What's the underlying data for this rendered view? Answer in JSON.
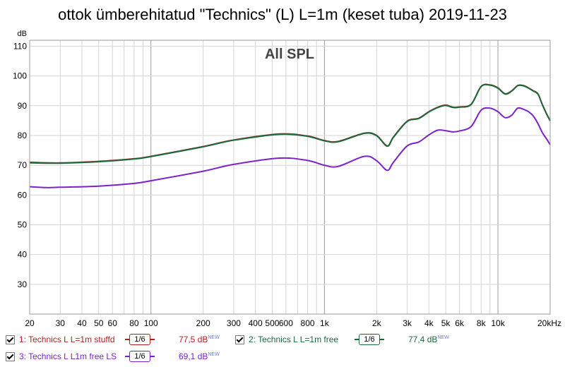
{
  "window": {
    "title": "ottok ümberehitatud \"Technics\" (L) L=1m (keset tuba) 2019-11-23"
  },
  "chart_data": {
    "type": "line",
    "title": "ottok ümberehitatud \"Technics\" (L) L=1m (keset tuba) 2019-11-23",
    "subtitle": "All SPL",
    "ylabel": "dB",
    "xunit": "Hz",
    "x_scale": "log",
    "xlim": [
      20,
      20000
    ],
    "ylim": [
      20,
      112
    ],
    "grid": true,
    "x_ticks": [
      20,
      30,
      40,
      50,
      60,
      80,
      100,
      200,
      300,
      400,
      500,
      600,
      800,
      1000,
      2000,
      3000,
      4000,
      5000,
      6000,
      8000,
      10000,
      20000
    ],
    "x_tick_labels": [
      "20",
      "30",
      "40",
      "50",
      "60",
      "80",
      "100",
      "200",
      "300",
      "400",
      "500",
      "600",
      "800",
      "1k",
      "2k",
      "3k",
      "4k",
      "5k",
      "6k",
      "8k",
      "10k",
      "20kHz"
    ],
    "y_ticks": [
      30,
      40,
      50,
      60,
      70,
      80,
      90,
      100,
      110
    ],
    "y_tick_labels": [
      "30",
      "40",
      "50",
      "60",
      "70",
      "80",
      "90",
      "100",
      "110"
    ],
    "series": [
      {
        "name": "1: Technics L L=1m stuffd",
        "color": "#b02020",
        "level": "77,5 dB",
        "smoothing": "1/6",
        "x": [
          20,
          30,
          50,
          80,
          100,
          200,
          300,
          550,
          800,
          1000,
          1200,
          1700,
          2000,
          2300,
          2500,
          3000,
          3500,
          4000,
          4500,
          5000,
          5500,
          6000,
          7000,
          8000,
          9000,
          10000,
          11000,
          12000,
          13000,
          14000,
          15000,
          16000,
          17000,
          18000,
          19000,
          20000
        ],
        "values": [
          71,
          70.8,
          71.3,
          72.2,
          73,
          76.3,
          78.5,
          80.5,
          79.8,
          78.3,
          78.0,
          80.8,
          80.0,
          76.5,
          79.5,
          84.8,
          85.8,
          88.0,
          89.5,
          90.2,
          89.5,
          89.6,
          90.5,
          96.5,
          97.0,
          96.0,
          94.0,
          95.0,
          96.8,
          96.8,
          96.0,
          95.0,
          94.0,
          90.5,
          87.5,
          85.0
        ]
      },
      {
        "name": "2: Technics L L=1m free",
        "color": "#1a6a3a",
        "level": "77,4 dB",
        "smoothing": "1/6",
        "x": [
          20,
          30,
          50,
          80,
          100,
          200,
          300,
          550,
          800,
          1000,
          1200,
          1700,
          2000,
          2300,
          2500,
          3000,
          3500,
          4000,
          4500,
          5000,
          5500,
          6000,
          7000,
          8000,
          9000,
          10000,
          11000,
          12000,
          13000,
          14000,
          15000,
          16000,
          17000,
          18000,
          19000,
          20000
        ],
        "values": [
          70.8,
          70.7,
          71.2,
          72.1,
          72.9,
          76.2,
          78.4,
          80.4,
          79.7,
          78.2,
          77.9,
          80.7,
          79.9,
          76.4,
          79.4,
          84.7,
          85.7,
          87.9,
          89.4,
          90.1,
          89.4,
          89.5,
          90.4,
          96.4,
          96.9,
          95.9,
          93.9,
          94.9,
          96.7,
          96.7,
          95.9,
          94.9,
          93.9,
          90.4,
          87.4,
          84.9
        ]
      },
      {
        "name": "3: Technics L L1m free LS",
        "color": "#7a22cc",
        "level": "69,1 dB",
        "smoothing": "1/6",
        "x": [
          20,
          25,
          30,
          50,
          80,
          100,
          200,
          300,
          550,
          800,
          1000,
          1200,
          1700,
          2000,
          2300,
          2500,
          3000,
          3500,
          4000,
          4500,
          5000,
          5500,
          6000,
          7000,
          8000,
          9000,
          10000,
          11000,
          12000,
          13000,
          14000,
          15000,
          16000,
          17000,
          18000,
          19000,
          20000
        ],
        "values": [
          62.8,
          62.5,
          62.6,
          63.0,
          63.9,
          64.8,
          68.0,
          70.3,
          72.4,
          71.6,
          70.0,
          69.6,
          73.0,
          71.5,
          68.3,
          71.0,
          76.5,
          77.8,
          80.2,
          81.8,
          81.6,
          81.2,
          81.5,
          83.0,
          88.5,
          89.2,
          88.0,
          86.0,
          86.8,
          89.2,
          88.8,
          88.0,
          86.5,
          84.0,
          81.0,
          79.0,
          76.9
        ]
      }
    ]
  },
  "legend": [
    {
      "name": "1: Technics L L=1m stuffd",
      "smoothing": "1/6",
      "level": "77,5 dB",
      "new": "NEW",
      "color": "#b02020",
      "checked": true
    },
    {
      "name": "2: Technics L L=1m free",
      "smoothing": "1/6",
      "level": "77,4 dB",
      "new": "NEW",
      "color": "#1a6a3a",
      "checked": true
    },
    {
      "name": "3: Technics L L1m free LS",
      "smoothing": "1/6",
      "level": "69,1 dB",
      "new": "NEW",
      "color": "#7a22cc",
      "checked": true
    }
  ]
}
